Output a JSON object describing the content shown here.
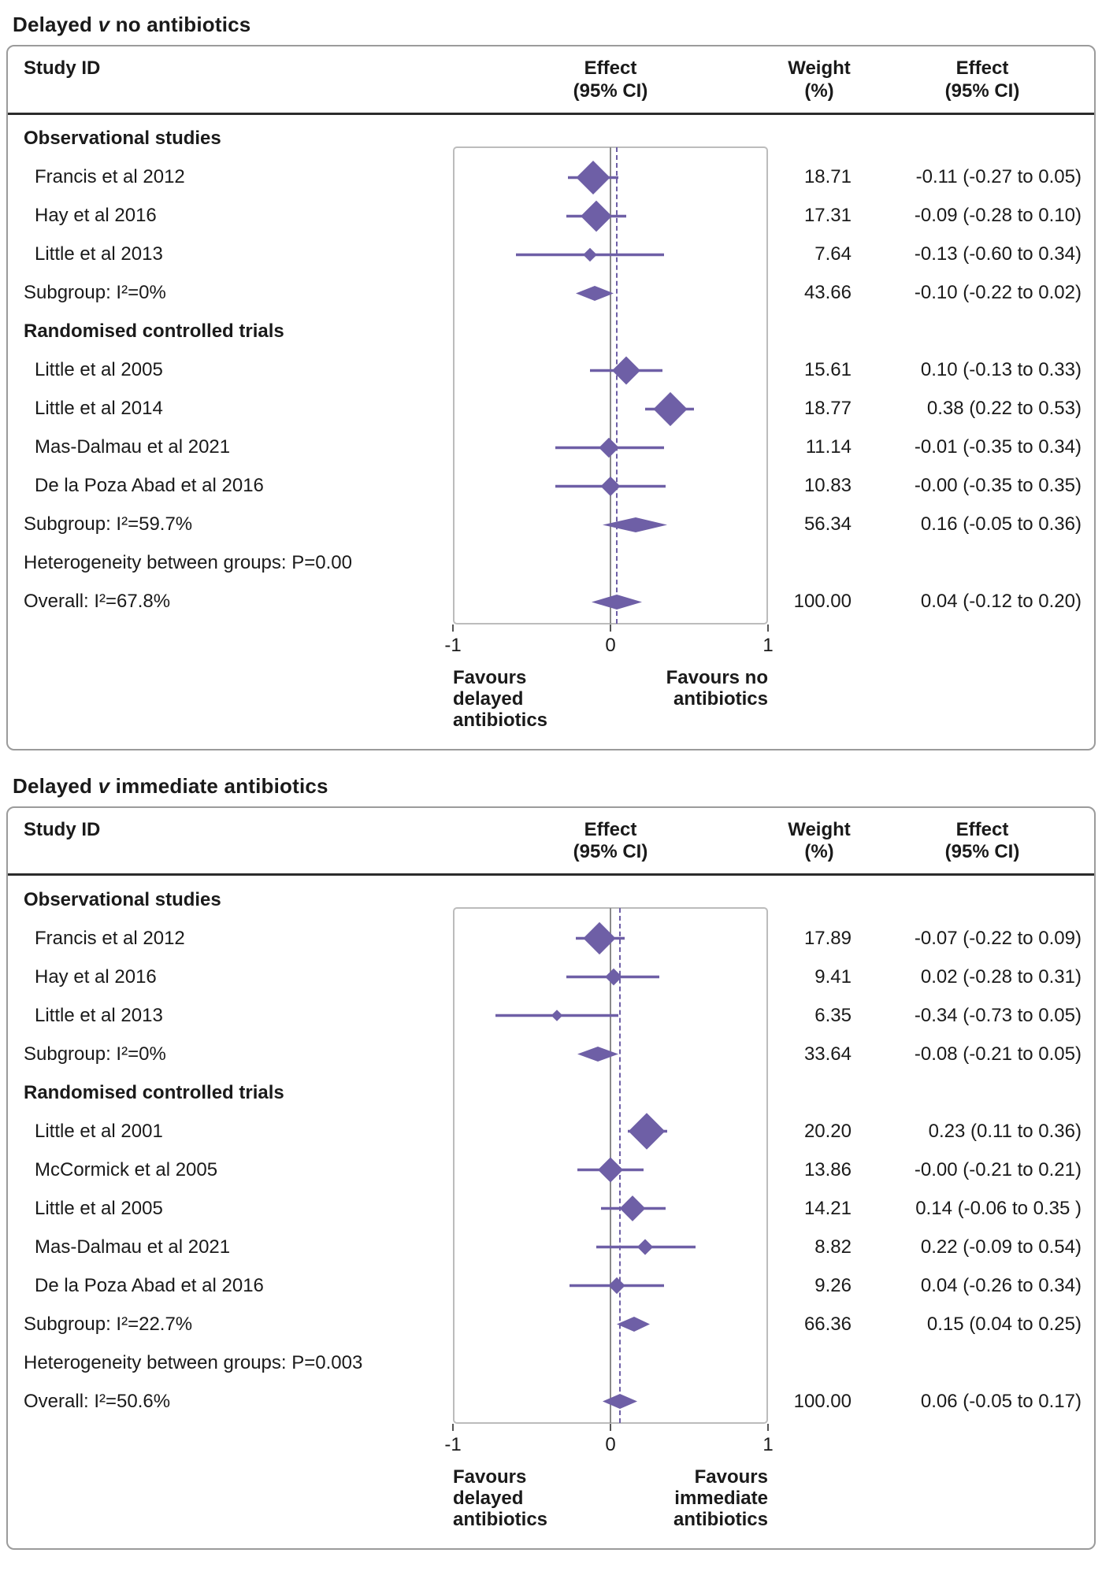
{
  "colors": {
    "diamond": "#6e5fa6",
    "ci_line": "#6e5fa6",
    "dashed_line": "#6e5fa6",
    "zero_line": "#8a8a8a",
    "panel_border": "#9b9b9b",
    "plot_box_border": "#bcbcbc",
    "header_rule": "#2b2b2b",
    "text": "#1a1a1a"
  },
  "chart_data": [
    {
      "type": "forest",
      "title_pre": "Delayed",
      "title_v": "v",
      "title_post": "no antibiotics",
      "columns": {
        "study": "Study ID",
        "plot_l1": "Effect",
        "plot_l2": "(95% CI)",
        "weight_l1": "Weight",
        "weight_l2": "(%)",
        "effect_l1": "Effect",
        "effect_l2": "(95% CI)"
      },
      "axis": {
        "min": -1,
        "max": 1,
        "ticks": [
          -1,
          0,
          1
        ],
        "tick_labels": [
          "-1",
          "0",
          "1"
        ]
      },
      "overall_line": 0.04,
      "favours_left": [
        "Favours",
        "delayed",
        "antibiotics"
      ],
      "favours_right": [
        "Favours no",
        "antibiotics"
      ],
      "rows": [
        {
          "type": "group",
          "label": "Observational studies"
        },
        {
          "type": "study",
          "label": "Francis et al 2012",
          "est": -0.11,
          "lo": -0.27,
          "hi": 0.05,
          "weight": 18.71,
          "weight_text": "18.71",
          "effect_text": "-0.11 (-0.27 to 0.05)"
        },
        {
          "type": "study",
          "label": "Hay et al 2016",
          "est": -0.09,
          "lo": -0.28,
          "hi": 0.1,
          "weight": 17.31,
          "weight_text": "17.31",
          "effect_text": "-0.09 (-0.28 to 0.10)"
        },
        {
          "type": "study",
          "label": "Little et al 2013",
          "est": -0.13,
          "lo": -0.6,
          "hi": 0.34,
          "weight": 7.64,
          "weight_text": "7.64",
          "effect_text": "-0.13 (-0.60 to 0.34)"
        },
        {
          "type": "subgroup",
          "label": "Subgroup: I²=0%",
          "est": -0.1,
          "lo": -0.22,
          "hi": 0.02,
          "weight_text": "43.66",
          "effect_text": "-0.10 (-0.22 to 0.02)"
        },
        {
          "type": "group",
          "label": "Randomised controlled trials"
        },
        {
          "type": "study",
          "label": "Little et al 2005",
          "est": 0.1,
          "lo": -0.13,
          "hi": 0.33,
          "weight": 15.61,
          "weight_text": "15.61",
          "effect_text": "0.10 (-0.13 to 0.33)"
        },
        {
          "type": "study",
          "label": "Little et al 2014",
          "est": 0.38,
          "lo": 0.22,
          "hi": 0.53,
          "weight": 18.77,
          "weight_text": "18.77",
          "effect_text": "0.38 (0.22 to 0.53)"
        },
        {
          "type": "study",
          "label": "Mas-Dalmau et al 2021",
          "est": -0.01,
          "lo": -0.35,
          "hi": 0.34,
          "weight": 11.14,
          "weight_text": "11.14",
          "effect_text": "-0.01 (-0.35 to 0.34)"
        },
        {
          "type": "study",
          "label": "De la Poza Abad et al 2016",
          "est": -0.0,
          "lo": -0.35,
          "hi": 0.35,
          "weight": 10.83,
          "weight_text": "10.83",
          "effect_text": "-0.00 (-0.35 to 0.35)"
        },
        {
          "type": "subgroup",
          "label": "Subgroup: I²=59.7%",
          "est": 0.16,
          "lo": -0.05,
          "hi": 0.36,
          "weight_text": "56.34",
          "effect_text": "0.16 (-0.05 to 0.36)"
        },
        {
          "type": "note",
          "label": "Heterogeneity between groups: P=0.00"
        },
        {
          "type": "overall",
          "label": "Overall: I²=67.8%",
          "est": 0.04,
          "lo": -0.12,
          "hi": 0.2,
          "weight_text": "100.00",
          "effect_text": "0.04 (-0.12 to 0.20)"
        }
      ]
    },
    {
      "type": "forest",
      "title_pre": "Delayed",
      "title_v": "v",
      "title_post": "immediate antibiotics",
      "columns": {
        "study": "Study ID",
        "plot_l1": "Effect",
        "plot_l2": "(95% CI)",
        "weight_l1": "Weight",
        "weight_l2": "(%)",
        "effect_l1": "Effect",
        "effect_l2": "(95% CI)"
      },
      "axis": {
        "min": -1,
        "max": 1,
        "ticks": [
          -1,
          0,
          1
        ],
        "tick_labels": [
          "-1",
          "0",
          "1"
        ]
      },
      "overall_line": 0.06,
      "favours_left": [
        "Favours",
        "delayed",
        "antibiotics"
      ],
      "favours_right": [
        "Favours",
        "immediate",
        "antibiotics"
      ],
      "rows": [
        {
          "type": "group",
          "label": "Observational studies"
        },
        {
          "type": "study",
          "label": "Francis et al 2012",
          "est": -0.07,
          "lo": -0.22,
          "hi": 0.09,
          "weight": 17.89,
          "weight_text": "17.89",
          "effect_text": "-0.07 (-0.22 to 0.09)"
        },
        {
          "type": "study",
          "label": "Hay et al 2016",
          "est": 0.02,
          "lo": -0.28,
          "hi": 0.31,
          "weight": 9.41,
          "weight_text": "9.41",
          "effect_text": "0.02 (-0.28 to 0.31)"
        },
        {
          "type": "study",
          "label": "Little et al 2013",
          "est": -0.34,
          "lo": -0.73,
          "hi": 0.05,
          "weight": 6.35,
          "weight_text": "6.35",
          "effect_text": "-0.34 (-0.73 to 0.05)"
        },
        {
          "type": "subgroup",
          "label": "Subgroup: I²=0%",
          "est": -0.08,
          "lo": -0.21,
          "hi": 0.05,
          "weight_text": "33.64",
          "effect_text": "-0.08 (-0.21 to 0.05)"
        },
        {
          "type": "group",
          "label": "Randomised controlled trials"
        },
        {
          "type": "study",
          "label": "Little et al 2001",
          "est": 0.23,
          "lo": 0.11,
          "hi": 0.36,
          "weight": 20.2,
          "weight_text": "20.20",
          "effect_text": "0.23 (0.11 to 0.36)"
        },
        {
          "type": "study",
          "label": "McCormick et al 2005",
          "est": -0.0,
          "lo": -0.21,
          "hi": 0.21,
          "weight": 13.86,
          "weight_text": "13.86",
          "effect_text": "-0.00 (-0.21 to 0.21)"
        },
        {
          "type": "study",
          "label": "Little et al 2005",
          "est": 0.14,
          "lo": -0.06,
          "hi": 0.35,
          "weight": 14.21,
          "weight_text": "14.21",
          "effect_text": "0.14 (-0.06 to 0.35 )"
        },
        {
          "type": "study",
          "label": "Mas-Dalmau et al 2021",
          "est": 0.22,
          "lo": -0.09,
          "hi": 0.54,
          "weight": 8.82,
          "weight_text": "8.82",
          "effect_text": "0.22 (-0.09 to 0.54)"
        },
        {
          "type": "study",
          "label": "De la Poza Abad et al 2016",
          "est": 0.04,
          "lo": -0.26,
          "hi": 0.34,
          "weight": 9.26,
          "weight_text": "9.26",
          "effect_text": "0.04 (-0.26 to 0.34)"
        },
        {
          "type": "subgroup",
          "label": "Subgroup: I²=22.7%",
          "est": 0.15,
          "lo": 0.04,
          "hi": 0.25,
          "weight_text": "66.36",
          "effect_text": "0.15 (0.04 to 0.25)"
        },
        {
          "type": "note",
          "label": "Heterogeneity between groups: P=0.003"
        },
        {
          "type": "overall",
          "label": "Overall: I²=50.6%",
          "est": 0.06,
          "lo": -0.05,
          "hi": 0.17,
          "weight_text": "100.00",
          "effect_text": "0.06 (-0.05 to 0.17)"
        }
      ]
    }
  ]
}
